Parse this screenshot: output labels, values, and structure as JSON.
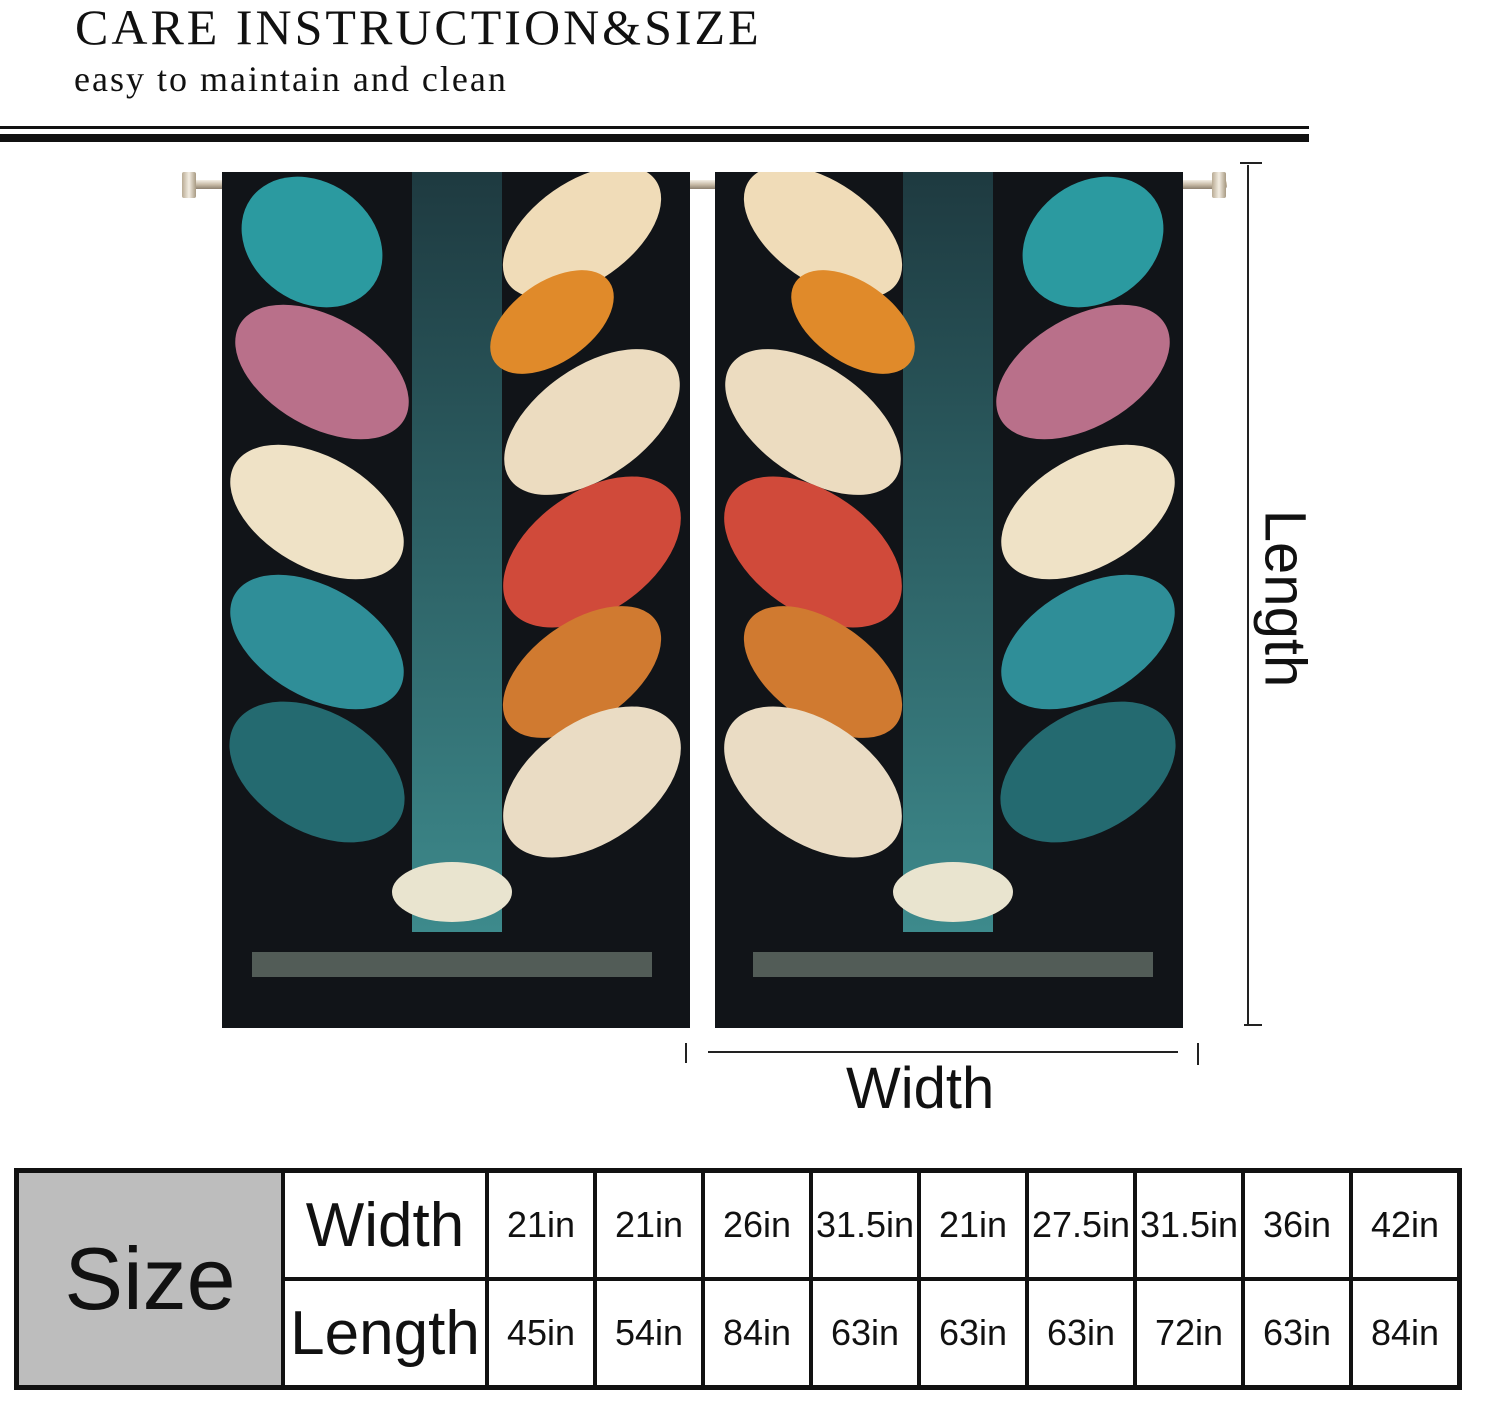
{
  "header": {
    "title": "CARE INSTRUCTION&SIZE",
    "subtitle": "easy to maintain and clean"
  },
  "diagram": {
    "width_label": "Width",
    "length_label": "Length",
    "colors": {
      "teal": "#2b8a8f",
      "amber": "#e08a2a",
      "cream": "#f0e0c0",
      "red": "#c0352f",
      "purple": "#8a4fa0",
      "dark": "#111418"
    }
  },
  "size_table": {
    "header": "Size",
    "rows": [
      {
        "label": "Width",
        "values": [
          "21in",
          "21in",
          "26in",
          "31.5in",
          "21in",
          "27.5in",
          "31.5in",
          "36in",
          "42in"
        ]
      },
      {
        "label": "Length",
        "values": [
          "45in",
          "54in",
          "84in",
          "63in",
          "63in",
          "63in",
          "72in",
          "63in",
          "84in"
        ]
      }
    ]
  }
}
